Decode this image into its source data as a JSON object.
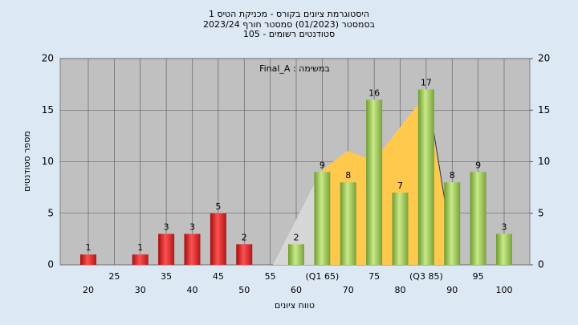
{
  "chart_data": {
    "type": "bar",
    "title": "היסטוגרמת ציונים בקורס - מכניקת הטיס 1",
    "subtitle": "בסמסטר  (01/2023)  סמסטר חורף 2023/24",
    "subtitle2": "סטודנטים רשומים - 105",
    "annotation": "Final_A : במשימה",
    "x_label": "טווח ציונים",
    "y_label": "מספר סטודנטים",
    "categories": [
      "20",
      "25",
      "30",
      "35",
      "40",
      "45",
      "50",
      "55",
      "60",
      "(Q1 65)",
      "70",
      "75",
      "80",
      "(Q3 85)",
      "90",
      "95",
      "100"
    ],
    "values": [
      1,
      0,
      1,
      3,
      3,
      5,
      2,
      0,
      2,
      9,
      8,
      16,
      7,
      17,
      8,
      9,
      3
    ],
    "colors": [
      "red",
      "red",
      "red",
      "red",
      "red",
      "red",
      "red",
      "red",
      "green",
      "green",
      "green",
      "green",
      "green",
      "green",
      "green",
      "green",
      "green"
    ],
    "ylim": [
      0,
      20
    ],
    "yticks": [
      0,
      5,
      10,
      15,
      20
    ],
    "y2lim": [
      0,
      20
    ],
    "y2ticks": [
      0,
      5,
      10,
      15,
      20
    ],
    "grid": true
  }
}
